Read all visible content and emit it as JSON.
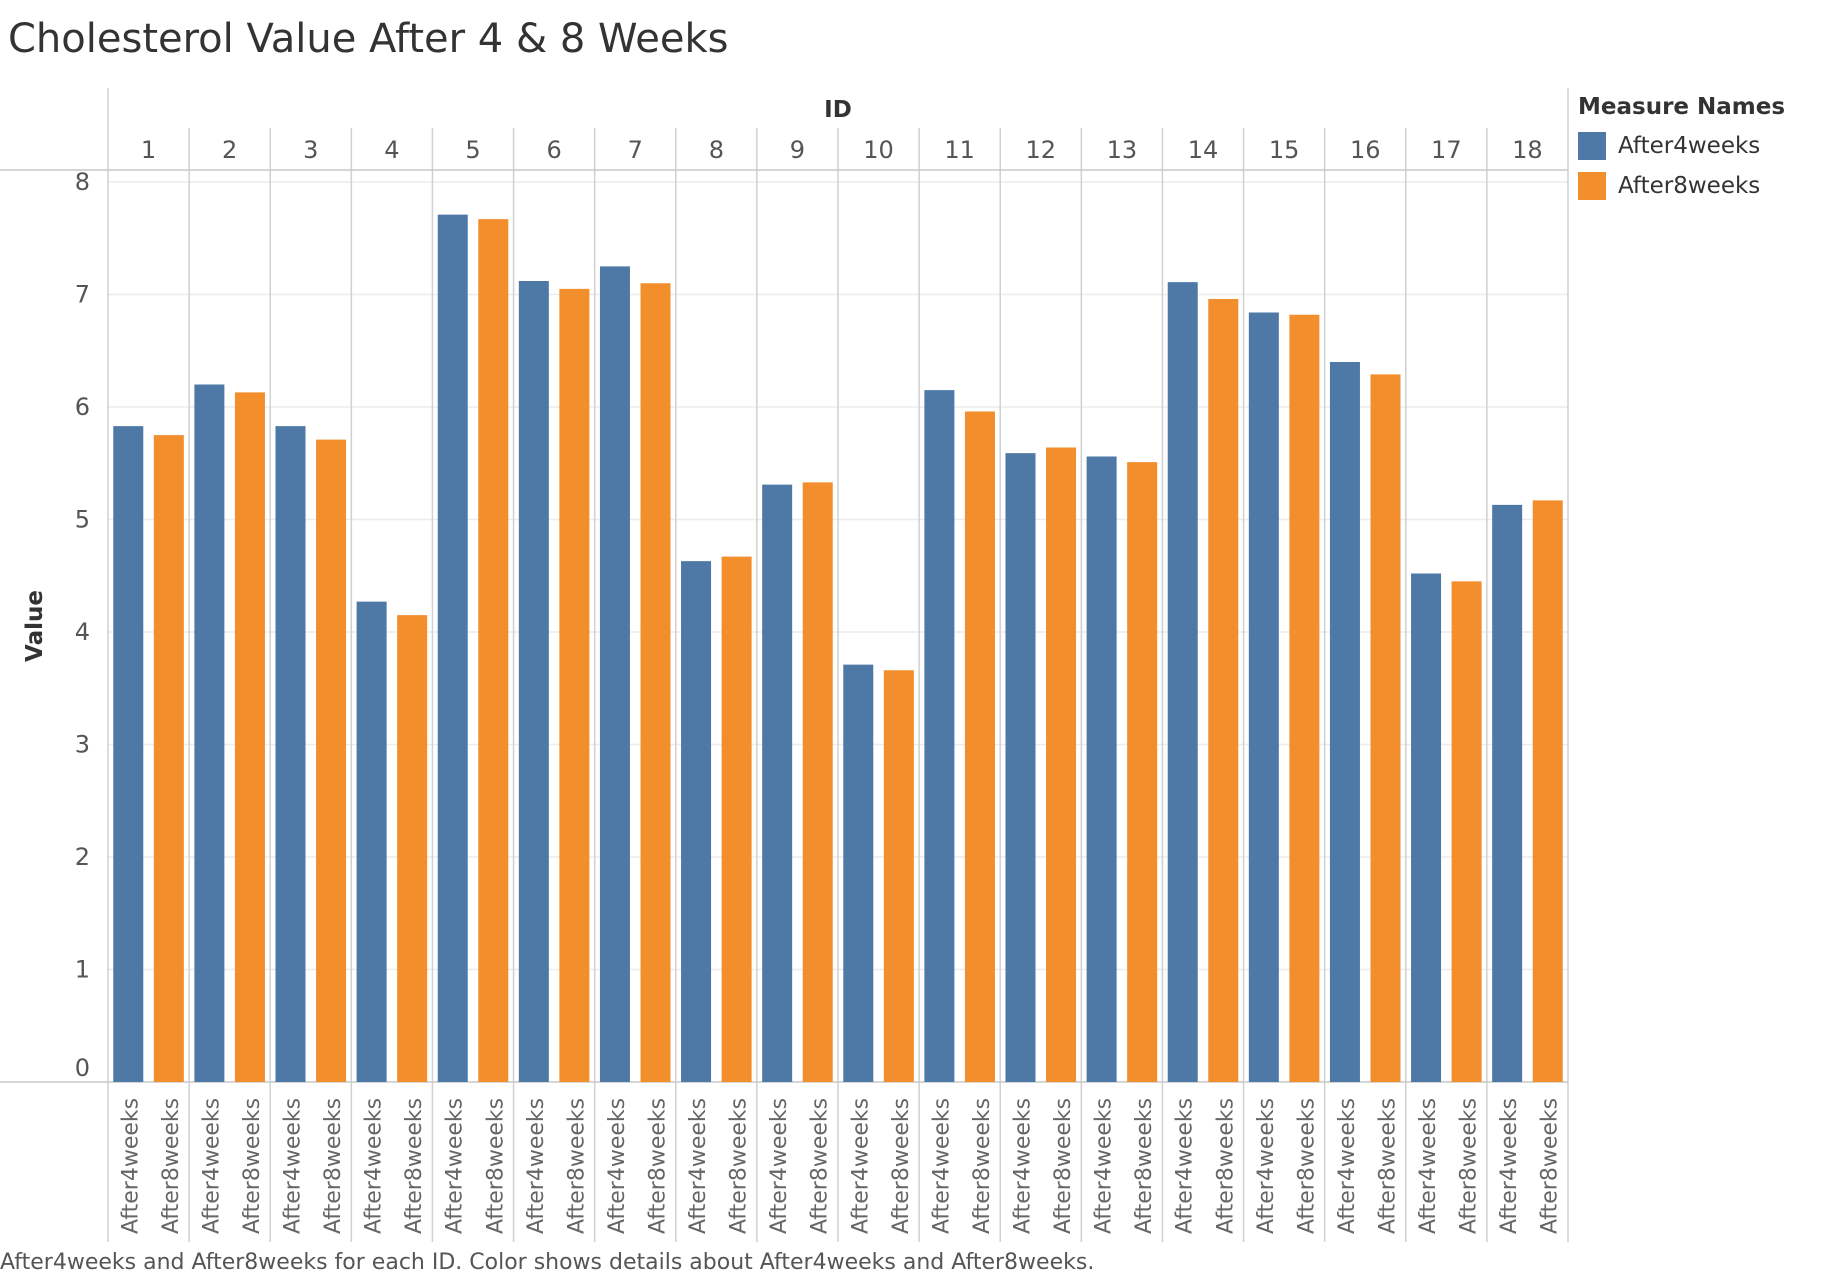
{
  "title": "Cholesterol Value After 4 & 8 Weeks",
  "caption": "After4weeks and After8weeks for each ID.  Color shows details about After4weeks and After8weeks.",
  "colors": {
    "After4weeks": "#4e79a7",
    "After8weeks": "#f28e2b"
  },
  "legend": {
    "title": "Measure Names",
    "items": [
      {
        "label": "After4weeks",
        "color": "#4e79a7"
      },
      {
        "label": "After8weeks",
        "color": "#f28e2b"
      }
    ]
  },
  "chart_data": {
    "type": "bar",
    "title": "Cholesterol Value After 4 & 8 Weeks",
    "column_header": "ID",
    "categories": [
      "1",
      "2",
      "3",
      "4",
      "5",
      "6",
      "7",
      "8",
      "9",
      "10",
      "11",
      "12",
      "13",
      "14",
      "15",
      "16",
      "17",
      "18"
    ],
    "sub_categories": [
      "After4weeks",
      "After8weeks"
    ],
    "ylabel": "Value",
    "ylim": [
      0,
      8
    ],
    "yticks": [
      0,
      1,
      2,
      3,
      4,
      5,
      6,
      7,
      8
    ],
    "grid": true,
    "legend_position": "top-right",
    "series": [
      {
        "name": "After4weeks",
        "values": [
          5.83,
          6.2,
          5.83,
          4.27,
          7.71,
          7.12,
          7.25,
          4.63,
          5.31,
          3.71,
          6.15,
          5.59,
          5.56,
          7.11,
          6.84,
          6.4,
          4.52,
          5.13
        ]
      },
      {
        "name": "After8weeks",
        "values": [
          5.75,
          6.13,
          5.71,
          4.15,
          7.67,
          7.05,
          7.1,
          4.67,
          5.33,
          3.66,
          5.96,
          5.64,
          5.51,
          6.96,
          6.82,
          6.29,
          4.45,
          5.17
        ]
      }
    ]
  }
}
